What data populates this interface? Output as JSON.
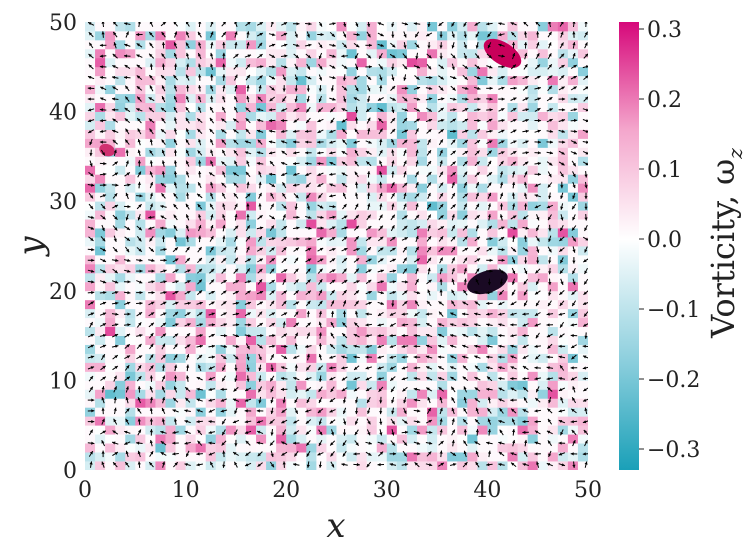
{
  "chart_data": {
    "type": "heatmap",
    "subtype": "vorticity-field-with-velocity-quiver",
    "xlabel": "x",
    "ylabel": "y",
    "xlim": [
      0,
      50
    ],
    "ylim": [
      0,
      50
    ],
    "x_ticks": [
      "0",
      "10",
      "20",
      "30",
      "40",
      "50"
    ],
    "y_ticks": [
      "0",
      "10",
      "20",
      "30",
      "40",
      "50"
    ],
    "grid": false,
    "grid_resolution": 50,
    "colorbar": {
      "label": "Vorticity, ω",
      "label_subscript": "z",
      "range": [
        -0.33,
        0.31
      ],
      "ticks": [
        "−0.3",
        "−0.2",
        "−0.1",
        "0.0",
        "0.1",
        "0.2",
        "0.3"
      ],
      "tick_values": [
        -0.3,
        -0.2,
        -0.1,
        0.0,
        0.1,
        0.2,
        0.3
      ],
      "colormap": [
        "#1aa0b8",
        "#8fd0de",
        "#ffffff",
        "#f4a6cc",
        "#d6087a"
      ]
    },
    "vortices": [
      {
        "x": 41.5,
        "y": 46.5,
        "sign": "positive",
        "color": "#c8005a"
      },
      {
        "x": 40.0,
        "y": 21.0,
        "sign": "negative-core",
        "color": "#1a0a24"
      },
      {
        "x": 2.2,
        "y": 35.7,
        "sign": "positive",
        "color": "#d03070"
      }
    ],
    "quiver": {
      "spacing": 1.2,
      "color": "#000000"
    }
  }
}
